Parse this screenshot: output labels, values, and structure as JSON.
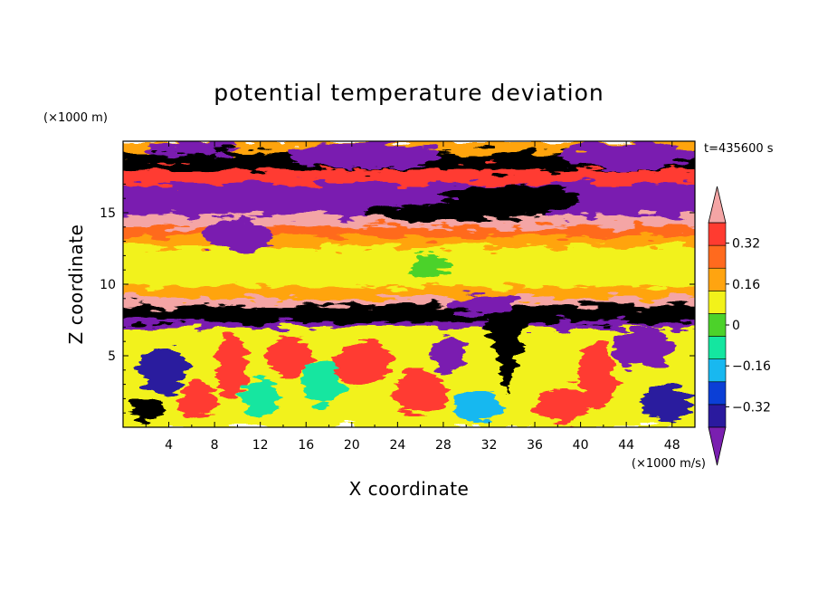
{
  "chart_data": {
    "type": "heatmap",
    "title": "potential temperature deviation",
    "xlabel": "X coordinate",
    "ylabel": "Z coordinate",
    "x_unit": "(×1000 m/s)",
    "y_unit": "(×1000 m)",
    "time_label": "t=435600 s",
    "xlim": [
      0,
      50
    ],
    "ylim": [
      0,
      20
    ],
    "x_ticks": [
      4,
      8,
      12,
      16,
      20,
      24,
      28,
      32,
      36,
      40,
      44,
      48
    ],
    "x_tick_labels": [
      "4",
      "8",
      "12",
      "16",
      "20",
      "24",
      "28",
      "32",
      "36",
      "40",
      "44",
      "48"
    ],
    "y_ticks": [
      5,
      10,
      15
    ],
    "y_tick_labels": [
      "5",
      "10",
      "15"
    ],
    "colorbar": {
      "levels": [
        -0.4,
        -0.32,
        -0.24,
        -0.16,
        -0.08,
        0,
        0.08,
        0.16,
        0.24,
        0.32,
        0.4
      ],
      "tick_values": [
        0.32,
        0.16,
        0,
        -0.16,
        -0.32
      ],
      "tick_labels": [
        "0.32",
        "0.16",
        "0",
        "−0.16",
        "−0.32"
      ],
      "colors": [
        "#7a1fb0",
        "#2a1a9e",
        "#0b3fd6",
        "#18b8f0",
        "#14e6a0",
        "#4cd22a",
        "#f2f21a",
        "#ffa410",
        "#ff6a1e",
        "#ff3b30",
        "#f4a5a5"
      ],
      "extend": "both"
    },
    "layers": [
      {
        "z": [
          19.2,
          20
        ],
        "value": 0.1
      },
      {
        "z": [
          18.0,
          19.2
        ],
        "value": 0.44
      },
      {
        "z": [
          17.0,
          18.0
        ],
        "value": 0.25
      },
      {
        "z": [
          14.8,
          17.0
        ],
        "value": -0.44
      },
      {
        "z": [
          14.0,
          14.8
        ],
        "value": 0.36
      },
      {
        "z": [
          13.3,
          14.0
        ],
        "value": 0.2
      },
      {
        "z": [
          12.6,
          13.3
        ],
        "value": 0.12
      },
      {
        "z": [
          9.8,
          12.6
        ],
        "value": 0.02
      },
      {
        "z": [
          9.0,
          9.8
        ],
        "value": 0.12
      },
      {
        "z": [
          8.5,
          9.0
        ],
        "value": 0.36
      },
      {
        "z": [
          7.3,
          8.5
        ],
        "value": 0.44
      },
      {
        "z": [
          6.9,
          7.3
        ],
        "value": -0.44
      },
      {
        "z": [
          0,
          6.9
        ],
        "value": 0.06
      }
    ],
    "features": [
      {
        "kind": "blob",
        "x": 2,
        "z": 1.2,
        "rx": 1.5,
        "rz": 0.8,
        "value": 0.44
      },
      {
        "kind": "blob",
        "x": 3.5,
        "z": 4.0,
        "rx": 2.2,
        "rz": 1.6,
        "value": -0.35
      },
      {
        "kind": "blob",
        "x": 6.5,
        "z": 1.8,
        "rx": 1.8,
        "rz": 1.2,
        "value": 0.3
      },
      {
        "kind": "blob",
        "x": 9.5,
        "z": 4.2,
        "rx": 1.4,
        "rz": 2.2,
        "value": 0.26
      },
      {
        "kind": "blob",
        "x": 12,
        "z": 2.2,
        "rx": 1.6,
        "rz": 1.4,
        "value": -0.12
      },
      {
        "kind": "blob",
        "x": 14.5,
        "z": 5.0,
        "rx": 2.0,
        "rz": 1.4,
        "value": 0.3
      },
      {
        "kind": "blob",
        "x": 17.5,
        "z": 3.2,
        "rx": 1.8,
        "rz": 1.6,
        "value": -0.1
      },
      {
        "kind": "blob",
        "x": 21,
        "z": 4.5,
        "rx": 2.6,
        "rz": 1.6,
        "value": 0.3
      },
      {
        "kind": "blob",
        "x": 26,
        "z": 2.5,
        "rx": 2.4,
        "rz": 1.6,
        "value": 0.26
      },
      {
        "kind": "blob",
        "x": 28.5,
        "z": 5.2,
        "rx": 1.6,
        "rz": 1.2,
        "value": -0.44
      },
      {
        "kind": "blob",
        "x": 31,
        "z": 1.5,
        "rx": 2.0,
        "rz": 1.2,
        "value": -0.2
      },
      {
        "kind": "blob",
        "x": 38.5,
        "z": 1.6,
        "rx": 2.5,
        "rz": 1.2,
        "value": 0.26
      },
      {
        "kind": "blob",
        "x": 41.5,
        "z": 3.6,
        "rx": 1.6,
        "rz": 2.4,
        "value": 0.3
      },
      {
        "kind": "blob",
        "x": 45.5,
        "z": 5.5,
        "rx": 2.6,
        "rz": 1.4,
        "value": -0.44
      },
      {
        "kind": "blob",
        "x": 47.5,
        "z": 1.6,
        "rx": 2.2,
        "rz": 1.2,
        "value": -0.35
      },
      {
        "kind": "plume",
        "x": 33.5,
        "z_top": 8.2,
        "z_bottom": 2.4,
        "width": 2.4,
        "value": 0.44
      },
      {
        "kind": "blob",
        "x": 31.5,
        "z": 8.6,
        "rx": 2.8,
        "rz": 0.8,
        "value": -0.44
      },
      {
        "kind": "blob",
        "x": 27,
        "z": 11.3,
        "rx": 1.8,
        "rz": 0.8,
        "value": -0.05
      },
      {
        "kind": "blob",
        "x": 34,
        "z": 16.0,
        "rx": 6.0,
        "rz": 1.0,
        "value": 0.44
      },
      {
        "kind": "blob",
        "x": 29,
        "z": 15.0,
        "rx": 8.0,
        "rz": 0.6,
        "value": 0.44
      },
      {
        "kind": "blob",
        "x": 10,
        "z": 13.5,
        "rx": 3.0,
        "rz": 1.2,
        "value": -0.44
      },
      {
        "kind": "blob",
        "x": 44,
        "z": 19.0,
        "rx": 6.0,
        "rz": 0.9,
        "value": -0.44
      },
      {
        "kind": "blob",
        "x": 21,
        "z": 19.0,
        "rx": 7.0,
        "rz": 0.9,
        "value": -0.44
      },
      {
        "kind": "blob",
        "x": 6,
        "z": 19.5,
        "rx": 4.0,
        "rz": 0.5,
        "value": -0.44
      }
    ]
  }
}
